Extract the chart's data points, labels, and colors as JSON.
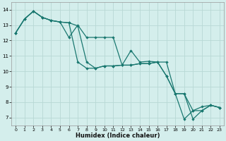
{
  "xlabel": "Humidex (Indice chaleur)",
  "bg_color": "#d4eeec",
  "grid_color": "#b8d8d5",
  "line_color": "#1a7870",
  "xlim": [
    -0.5,
    23.5
  ],
  "ylim": [
    6.5,
    14.5
  ],
  "xticks": [
    0,
    1,
    2,
    3,
    4,
    5,
    6,
    7,
    8,
    9,
    10,
    11,
    12,
    13,
    14,
    15,
    16,
    17,
    18,
    19,
    20,
    21,
    22,
    23
  ],
  "yticks": [
    7,
    8,
    9,
    10,
    11,
    12,
    13,
    14
  ],
  "line1_y": [
    12.5,
    13.4,
    13.9,
    13.5,
    13.3,
    13.2,
    13.15,
    12.95,
    10.6,
    10.2,
    10.35,
    10.35,
    10.4,
    11.35,
    10.6,
    10.65,
    10.6,
    9.7,
    8.55,
    6.9,
    7.45,
    7.7,
    7.8,
    7.65
  ],
  "line2_y": [
    12.5,
    13.4,
    13.9,
    13.5,
    13.3,
    13.2,
    13.15,
    10.6,
    10.2,
    10.2,
    10.35,
    10.35,
    10.4,
    10.4,
    10.5,
    10.5,
    10.6,
    10.6,
    8.55,
    8.55,
    6.9,
    7.45,
    7.8,
    7.65
  ],
  "line3_y": [
    12.5,
    13.4,
    13.9,
    13.5,
    13.3,
    13.2,
    12.2,
    13.0,
    12.2,
    12.2,
    12.2,
    12.2,
    10.4,
    10.4,
    10.5,
    10.5,
    10.6,
    9.7,
    8.55,
    8.55,
    7.45,
    7.45,
    7.8,
    7.65
  ]
}
